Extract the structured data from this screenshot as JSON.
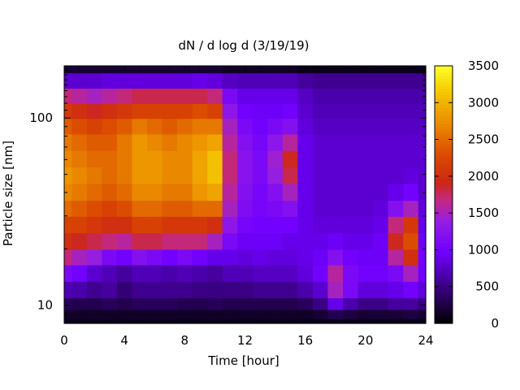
{
  "chart_data": {
    "type": "heatmap",
    "title": "dN / d log d (3/19/19)",
    "xlabel": "Time [hour]",
    "ylabel": "Particle size [nm]",
    "xlim": [
      0,
      24
    ],
    "xticks": [
      0,
      4,
      8,
      12,
      16,
      20,
      24
    ],
    "ylim": [
      8,
      190
    ],
    "yscale": "log",
    "yticks": [
      {
        "value": 10,
        "label": "10"
      },
      {
        "value": 100,
        "label": "100"
      }
    ],
    "colorbar": {
      "lim": [
        0,
        3500
      ],
      "ticks": [
        0,
        500,
        1000,
        1500,
        2000,
        2500,
        3000,
        3500
      ]
    },
    "grid": false,
    "hours": [
      0,
      1,
      2,
      3,
      4,
      5,
      6,
      7,
      8,
      9,
      10,
      11,
      12,
      13,
      14,
      15,
      16,
      17,
      18,
      19,
      20,
      21,
      22,
      23,
      24
    ],
    "sizes_nm": [
      8,
      9,
      10,
      12,
      15,
      18,
      22,
      27,
      33,
      40,
      50,
      60,
      75,
      90,
      110,
      130,
      160,
      190
    ],
    "dN_dlogd": [
      [
        100,
        150,
        350,
        700,
        1100,
        1700,
        2000,
        2200,
        2500,
        2700,
        2800,
        2700,
        2600,
        2400,
        2100,
        1700,
        800,
        200
      ],
      [
        100,
        150,
        300,
        650,
        1000,
        1500,
        1900,
        2200,
        2400,
        2600,
        2700,
        2600,
        2500,
        2300,
        2000,
        1600,
        800,
        200
      ],
      [
        100,
        150,
        300,
        550,
        800,
        1400,
        1800,
        2100,
        2300,
        2500,
        2600,
        2500,
        2400,
        2200,
        1900,
        1500,
        800,
        200
      ],
      [
        100,
        150,
        350,
        600,
        700,
        1100,
        1700,
        2000,
        2200,
        2400,
        2500,
        2500,
        2400,
        2300,
        2000,
        1600,
        850,
        200
      ],
      [
        100,
        150,
        300,
        450,
        600,
        1000,
        1600,
        2000,
        2300,
        2500,
        2600,
        2600,
        2600,
        2400,
        2100,
        1700,
        850,
        200
      ],
      [
        100,
        150,
        350,
        550,
        700,
        1200,
        1800,
        2200,
        2500,
        2700,
        2800,
        2800,
        2800,
        2600,
        2200,
        1800,
        850,
        200
      ],
      [
        100,
        150,
        350,
        550,
        700,
        1100,
        1800,
        2200,
        2500,
        2700,
        2800,
        2800,
        2700,
        2500,
        2200,
        1800,
        850,
        200
      ],
      [
        100,
        150,
        350,
        550,
        650,
        1000,
        1700,
        2100,
        2400,
        2600,
        2700,
        2700,
        2600,
        2400,
        2200,
        1800,
        850,
        200
      ],
      [
        100,
        150,
        300,
        550,
        700,
        1100,
        1700,
        2100,
        2400,
        2600,
        2700,
        2700,
        2700,
        2500,
        2200,
        1800,
        850,
        200
      ],
      [
        100,
        150,
        300,
        500,
        650,
        1000,
        1700,
        2100,
        2500,
        2800,
        2900,
        2900,
        2800,
        2600,
        2300,
        1800,
        900,
        200
      ],
      [
        100,
        150,
        350,
        500,
        600,
        900,
        1500,
        2000,
        2500,
        2900,
        3100,
        3100,
        2900,
        2600,
        2200,
        1700,
        850,
        200
      ],
      [
        100,
        150,
        300,
        500,
        700,
        900,
        1100,
        1300,
        1500,
        1600,
        1700,
        1700,
        1600,
        1500,
        1300,
        1100,
        750,
        150
      ],
      [
        100,
        150,
        300,
        500,
        700,
        850,
        950,
        1050,
        1150,
        1200,
        1250,
        1250,
        1200,
        1100,
        1000,
        900,
        700,
        150
      ],
      [
        100,
        150,
        300,
        550,
        750,
        900,
        950,
        1000,
        1050,
        1050,
        1100,
        1100,
        1050,
        1000,
        950,
        900,
        700,
        150
      ],
      [
        100,
        150,
        300,
        550,
        750,
        850,
        950,
        1000,
        1100,
        1200,
        1400,
        1450,
        1300,
        1100,
        950,
        900,
        700,
        150
      ],
      [
        100,
        150,
        300,
        550,
        750,
        850,
        900,
        1000,
        1200,
        1500,
        1800,
        1900,
        1600,
        1200,
        1000,
        900,
        700,
        150
      ],
      [
        100,
        150,
        350,
        650,
        850,
        900,
        900,
        900,
        900,
        900,
        900,
        900,
        900,
        850,
        800,
        750,
        600,
        100
      ],
      [
        100,
        200,
        500,
        800,
        1000,
        950,
        900,
        850,
        800,
        800,
        800,
        800,
        800,
        750,
        700,
        650,
        550,
        100
      ],
      [
        100,
        300,
        900,
        1500,
        1600,
        1200,
        950,
        850,
        800,
        800,
        800,
        800,
        800,
        750,
        700,
        650,
        550,
        100
      ],
      [
        100,
        250,
        650,
        1100,
        1100,
        1000,
        900,
        850,
        800,
        800,
        800,
        800,
        800,
        750,
        700,
        650,
        550,
        100
      ],
      [
        100,
        200,
        500,
        850,
        1000,
        950,
        900,
        850,
        800,
        800,
        800,
        800,
        800,
        750,
        700,
        650,
        550,
        100
      ],
      [
        100,
        200,
        500,
        850,
        1000,
        950,
        950,
        900,
        850,
        800,
        800,
        800,
        800,
        750,
        700,
        650,
        550,
        100
      ],
      [
        100,
        200,
        600,
        900,
        1100,
        1600,
        1900,
        1700,
        1200,
        900,
        800,
        800,
        800,
        750,
        700,
        650,
        550,
        100
      ],
      [
        100,
        250,
        600,
        1000,
        1500,
        2000,
        2300,
        2100,
        1500,
        1000,
        850,
        800,
        800,
        750,
        700,
        650,
        550,
        100
      ],
      [
        100,
        200,
        500,
        850,
        1000,
        1000,
        950,
        900,
        850,
        800,
        800,
        800,
        800,
        750,
        700,
        650,
        550,
        100
      ]
    ]
  }
}
